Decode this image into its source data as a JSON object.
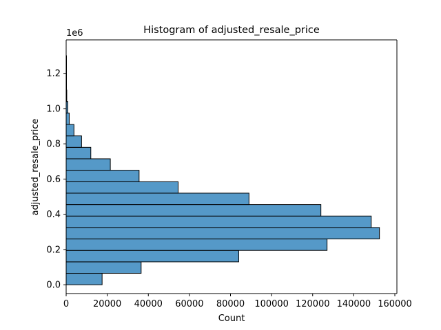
{
  "chart_data": {
    "type": "bar",
    "orientation": "horizontal",
    "title": "Histogram of adjusted_resale_price",
    "xlabel": "Count",
    "ylabel": "adjusted_resale_price",
    "y_offset_label": "1e6",
    "xlim": [
      0,
      161000
    ],
    "ylim": [
      -0.05,
      1.39
    ],
    "x_ticks": [
      0,
      20000,
      40000,
      60000,
      80000,
      100000,
      120000,
      140000,
      160000
    ],
    "x_tick_labels": [
      "0",
      "20000",
      "40000",
      "60000",
      "80000",
      "100000",
      "120000",
      "140000",
      "160000"
    ],
    "y_ticks": [
      0.0,
      0.2,
      0.4,
      0.6,
      0.8,
      1.0,
      1.2
    ],
    "y_tick_labels": [
      "0.0",
      "0.2",
      "0.4",
      "0.6",
      "0.8",
      "1.0",
      "1.2"
    ],
    "bins": [
      {
        "start": 0.0,
        "end": 0.065,
        "count": 17500
      },
      {
        "start": 0.065,
        "end": 0.13,
        "count": 36500
      },
      {
        "start": 0.13,
        "end": 0.195,
        "count": 84000
      },
      {
        "start": 0.195,
        "end": 0.26,
        "count": 127000
      },
      {
        "start": 0.26,
        "end": 0.325,
        "count": 152500
      },
      {
        "start": 0.325,
        "end": 0.39,
        "count": 148500
      },
      {
        "start": 0.39,
        "end": 0.455,
        "count": 124000
      },
      {
        "start": 0.455,
        "end": 0.52,
        "count": 89000
      },
      {
        "start": 0.52,
        "end": 0.585,
        "count": 54500
      },
      {
        "start": 0.585,
        "end": 0.65,
        "count": 35500
      },
      {
        "start": 0.65,
        "end": 0.715,
        "count": 21500
      },
      {
        "start": 0.715,
        "end": 0.78,
        "count": 12000
      },
      {
        "start": 0.78,
        "end": 0.845,
        "count": 7500
      },
      {
        "start": 0.845,
        "end": 0.91,
        "count": 3800
      },
      {
        "start": 0.91,
        "end": 0.975,
        "count": 1500
      },
      {
        "start": 0.975,
        "end": 1.04,
        "count": 800
      },
      {
        "start": 1.04,
        "end": 1.105,
        "count": 300
      },
      {
        "start": 1.105,
        "end": 1.17,
        "count": 120
      },
      {
        "start": 1.17,
        "end": 1.235,
        "count": 50
      },
      {
        "start": 1.235,
        "end": 1.3,
        "count": 20
      }
    ],
    "colors": {
      "bar_fill": "#5599c8",
      "bar_edge": "#000000"
    },
    "grid": false,
    "legend": "none"
  }
}
